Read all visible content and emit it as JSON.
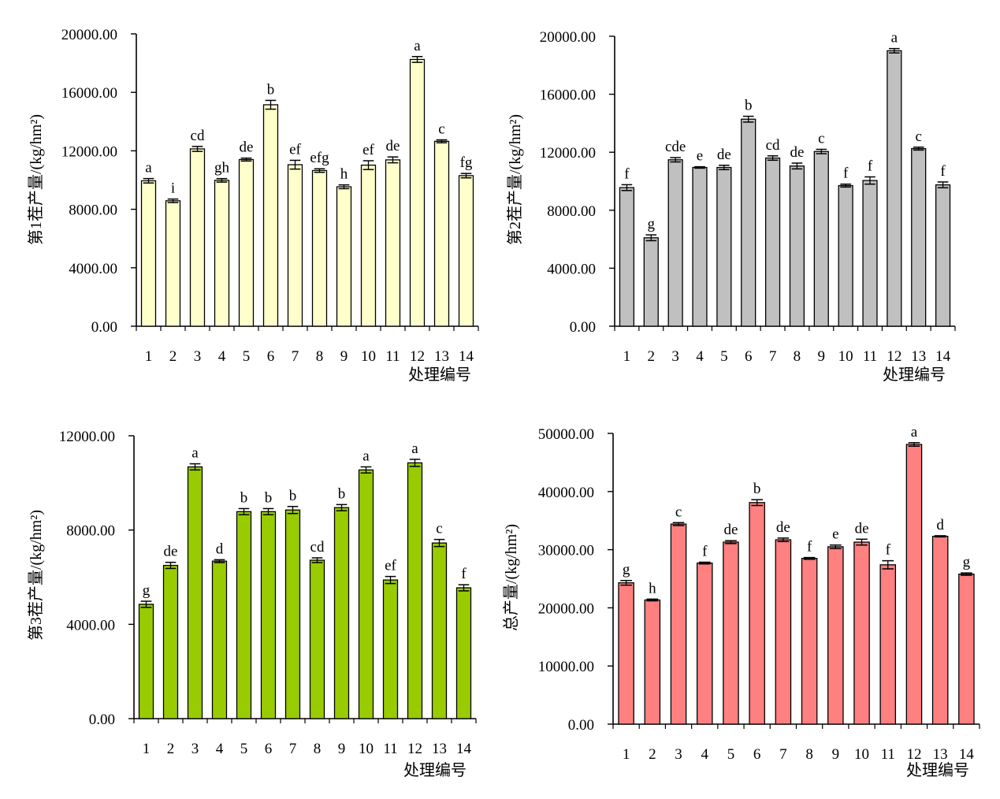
{
  "chart_data": [
    {
      "type": "bar",
      "ylabel": "第1茬产量/(kg/hm²)",
      "xlabel": "处理编号",
      "ylim": [
        0,
        20000
      ],
      "yticks": [
        "0.00",
        "4000.00",
        "8000.00",
        "12000.00",
        "16000.00",
        "20000.00"
      ],
      "categories": [
        "1",
        "2",
        "3",
        "4",
        "5",
        "6",
        "7",
        "8",
        "9",
        "10",
        "11",
        "12",
        "13",
        "14"
      ],
      "values": [
        9950,
        8580,
        12130,
        9980,
        11400,
        15150,
        11050,
        10650,
        9540,
        11020,
        11380,
        18250,
        12650,
        10300
      ],
      "errors": [
        150,
        120,
        170,
        120,
        100,
        300,
        300,
        120,
        130,
        300,
        200,
        200,
        100,
        150
      ],
      "labels": [
        "a",
        "i",
        "cd",
        "gh",
        "de",
        "b",
        "ef",
        "efg",
        "h",
        "ef",
        "de",
        "a",
        "c",
        "fg"
      ],
      "bar_color": "#FFFFCC",
      "grid": false
    },
    {
      "type": "bar",
      "ylabel": "第2茬产量/(kg/hm²)",
      "xlabel": "处理编号",
      "ylim": [
        0,
        20000
      ],
      "yticks": [
        "0.00",
        "4000.00",
        "8000.00",
        "12000.00",
        "16000.00",
        "20000.00"
      ],
      "categories": [
        "1",
        "2",
        "3",
        "4",
        "5",
        "6",
        "7",
        "8",
        "9",
        "10",
        "11",
        "12",
        "13",
        "14"
      ],
      "values": [
        9560,
        6100,
        11480,
        10950,
        10950,
        14280,
        11600,
        11050,
        12050,
        9700,
        10050,
        19000,
        12250,
        9750
      ],
      "errors": [
        200,
        200,
        150,
        50,
        150,
        200,
        150,
        200,
        150,
        100,
        250,
        150,
        100,
        200
      ],
      "labels": [
        "f",
        "g",
        "cde",
        "e",
        "de",
        "b",
        "cd",
        "de",
        "c",
        "f",
        "f",
        "a",
        "c",
        "f"
      ],
      "bar_color": "#C0C0C0",
      "grid": false
    },
    {
      "type": "bar",
      "ylabel": "第3茬产量/(kg/hm²)",
      "xlabel": "处理编号",
      "ylim": [
        0,
        12000
      ],
      "yticks": [
        "0.00",
        "4000.00",
        "8000.00",
        "12000.00"
      ],
      "categories": [
        "1",
        "2",
        "3",
        "4",
        "5",
        "6",
        "7",
        "8",
        "9",
        "10",
        "11",
        "12",
        "13",
        "14"
      ],
      "values": [
        4850,
        6500,
        10680,
        6680,
        8780,
        8780,
        8850,
        6720,
        8950,
        10550,
        5880,
        10850,
        7450,
        5550
      ],
      "errors": [
        130,
        130,
        130,
        60,
        130,
        130,
        150,
        100,
        130,
        130,
        150,
        150,
        150,
        130
      ],
      "labels": [
        "g",
        "de",
        "a",
        "d",
        "b",
        "b",
        "b",
        "cd",
        "b",
        "a",
        "ef",
        "a",
        "c",
        "f"
      ],
      "bar_color": "#99CC00",
      "grid": false
    },
    {
      "type": "bar",
      "ylabel": "总产量/(kg/hm²)",
      "xlabel": "处理编号",
      "ylim": [
        0,
        50000
      ],
      "yticks": [
        "0.00",
        "10000.00",
        "20000.00",
        "30000.00",
        "40000.00",
        "50000.00"
      ],
      "categories": [
        "1",
        "2",
        "3",
        "4",
        "5",
        "6",
        "7",
        "8",
        "9",
        "10",
        "11",
        "12",
        "13",
        "14"
      ],
      "values": [
        24300,
        21350,
        34400,
        27700,
        31300,
        38100,
        31700,
        28500,
        30500,
        31300,
        27400,
        48100,
        32300,
        25800
      ],
      "errors": [
        400,
        150,
        250,
        150,
        250,
        500,
        300,
        150,
        300,
        500,
        700,
        300,
        100,
        200
      ],
      "labels": [
        "g",
        "h",
        "c",
        "f",
        "de",
        "b",
        "de",
        "f",
        "e",
        "de",
        "f",
        "a",
        "d",
        "g"
      ],
      "bar_color": "#FF8080",
      "grid": false
    }
  ]
}
